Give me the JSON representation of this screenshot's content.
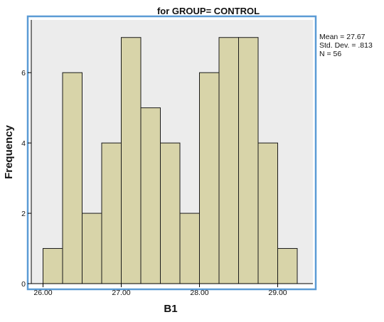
{
  "chart_data": {
    "type": "bar",
    "title": "for GROUP= CONTROL",
    "xlabel": "B1",
    "ylabel": "Frequency",
    "bin_width": 0.25,
    "bins": [
      {
        "start": 26.0,
        "end": 26.25,
        "count": 1
      },
      {
        "start": 26.25,
        "end": 26.5,
        "count": 6
      },
      {
        "start": 26.5,
        "end": 26.75,
        "count": 2
      },
      {
        "start": 26.75,
        "end": 27.0,
        "count": 4
      },
      {
        "start": 27.0,
        "end": 27.25,
        "count": 7
      },
      {
        "start": 27.25,
        "end": 27.5,
        "count": 5
      },
      {
        "start": 27.5,
        "end": 27.75,
        "count": 4
      },
      {
        "start": 27.75,
        "end": 28.0,
        "count": 2
      },
      {
        "start": 28.0,
        "end": 28.25,
        "count": 6
      },
      {
        "start": 28.25,
        "end": 28.5,
        "count": 7
      },
      {
        "start": 28.5,
        "end": 28.75,
        "count": 7
      },
      {
        "start": 28.75,
        "end": 29.0,
        "count": 4
      },
      {
        "start": 29.0,
        "end": 29.25,
        "count": 1
      }
    ],
    "xlim": [
      25.85,
      29.45
    ],
    "ylim": [
      0,
      7.5
    ],
    "x_ticks": [
      "26.00",
      "27.00",
      "28.00",
      "29.00"
    ],
    "y_ticks": [
      "0",
      "2",
      "4",
      "6"
    ],
    "stats": [
      "Mean = 27.67",
      "Std. Dev. = .813",
      "N = 56"
    ],
    "grid": false,
    "legend": "none",
    "colors": {
      "bar_fill": "#d8d4a9",
      "bar_stroke": "#1a1a1a",
      "plot_bg": "#ececec",
      "frame": "#5b9bd5",
      "axis": "#000000"
    }
  }
}
